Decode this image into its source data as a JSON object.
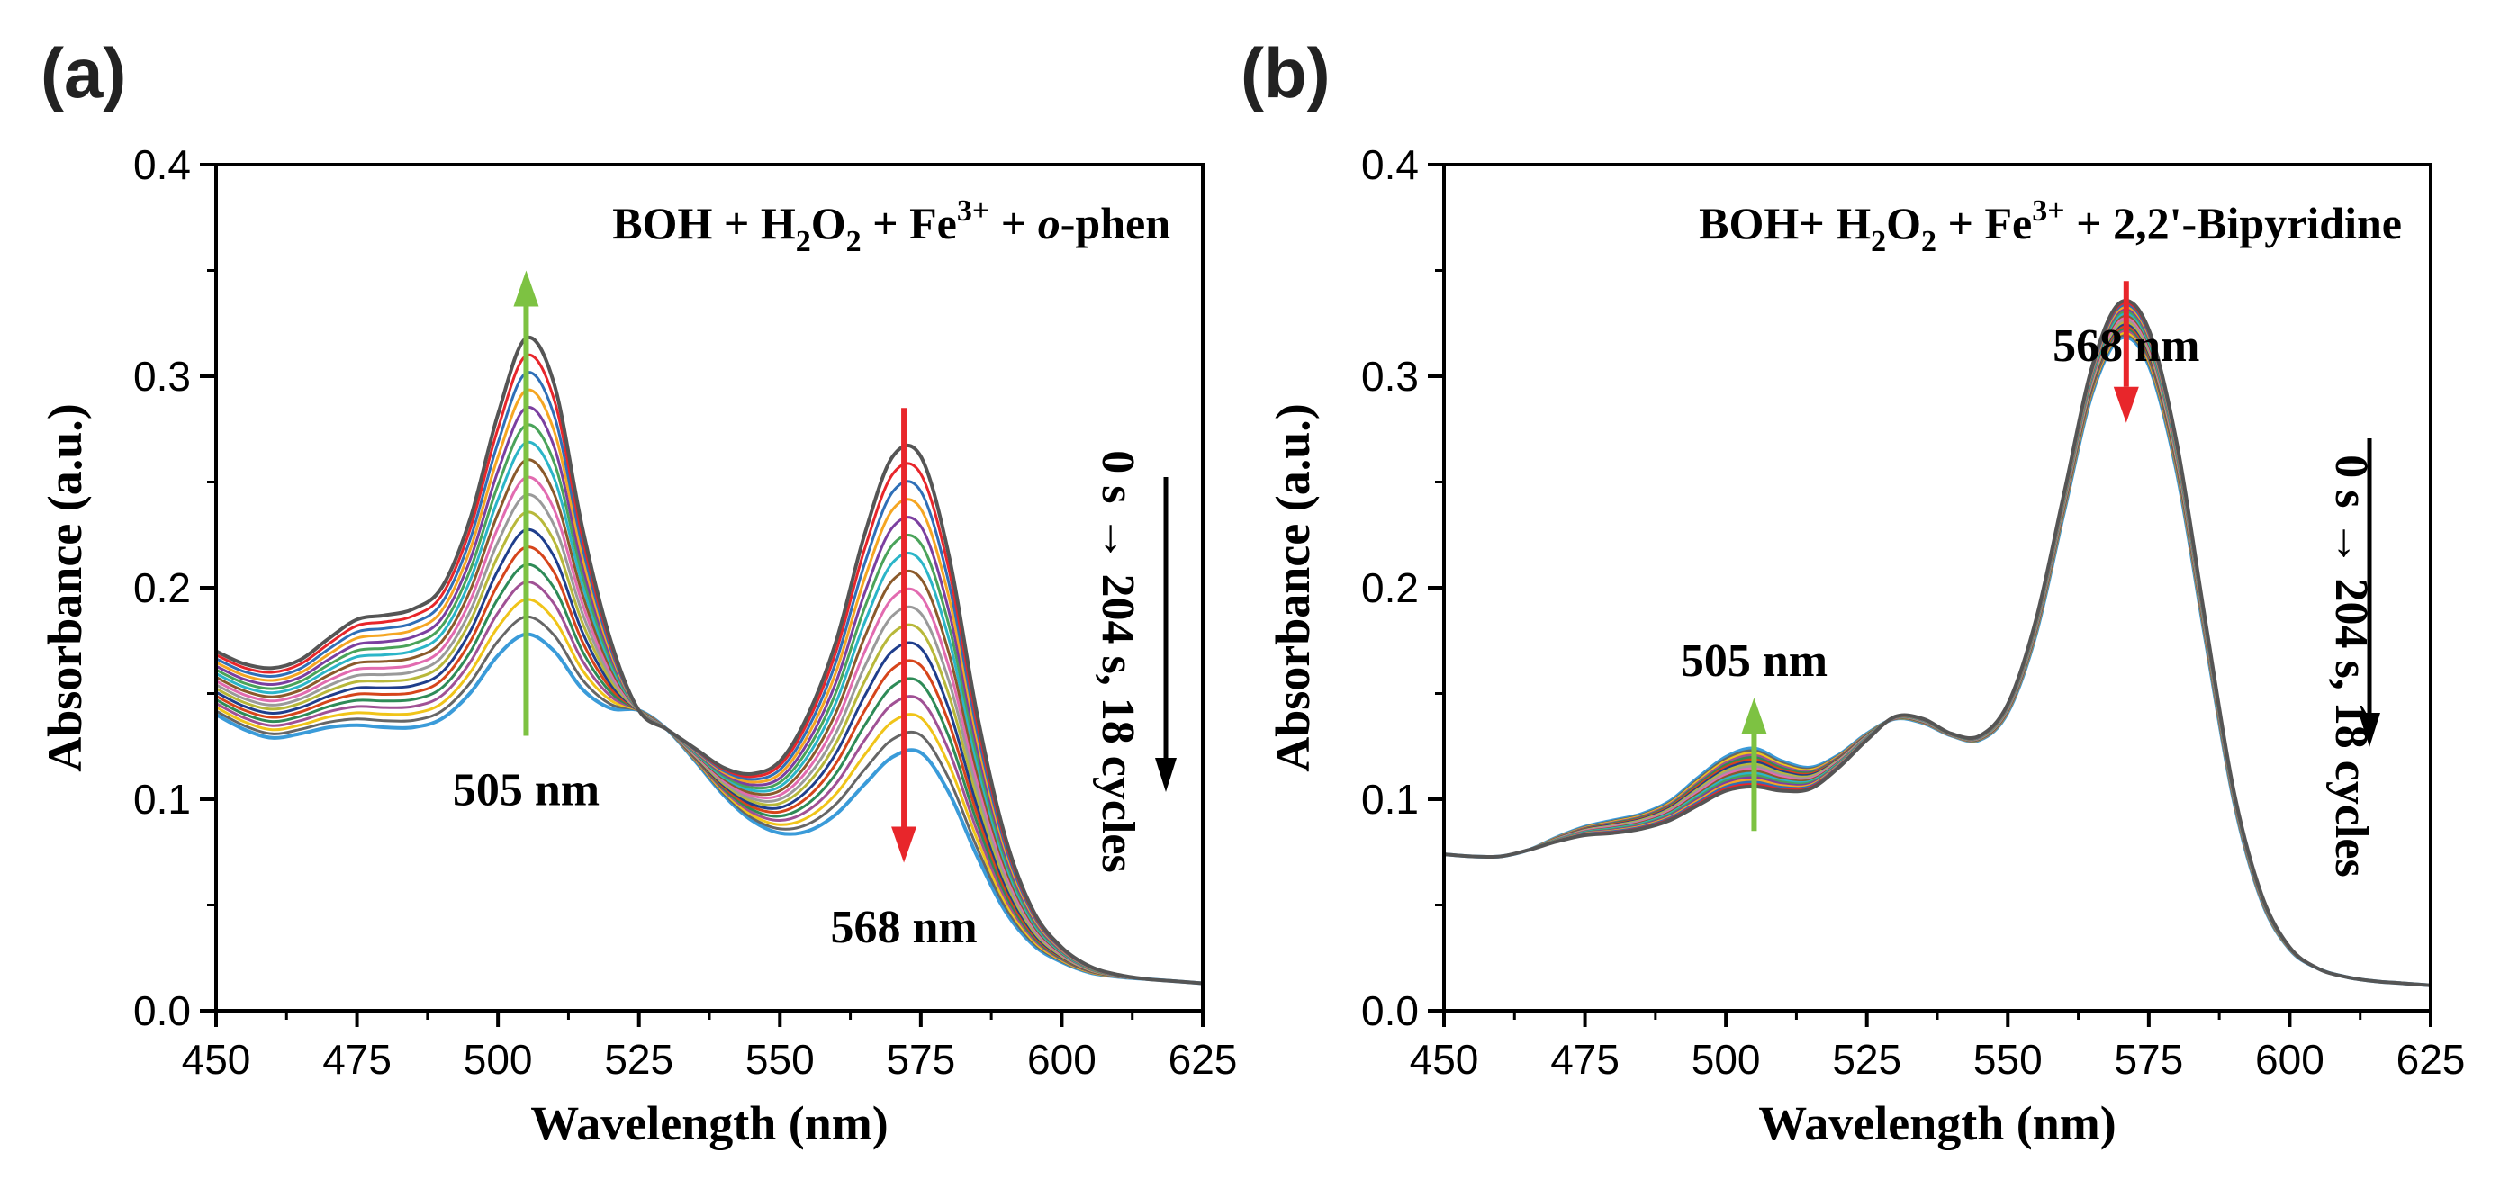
{
  "chart_data": [
    {
      "type": "line",
      "panel_label": "(a)",
      "title": "",
      "annotation_parts": [
        "BOH + H",
        "2",
        "O",
        "2",
        " + Fe",
        "3+",
        " + ",
        "o",
        "-phen"
      ],
      "xlabel": "Wavelength (nm)",
      "ylabel": "Absorbance (a.u.)",
      "xlim": [
        450,
        625
      ],
      "ylim": [
        0.0,
        0.4
      ],
      "xticks": [
        450,
        475,
        500,
        525,
        550,
        575,
        600,
        625
      ],
      "yticks": [
        0.0,
        0.1,
        0.2,
        0.3,
        0.4
      ],
      "ytick_labels": [
        "0.0",
        "0.1",
        "0.2",
        "0.3",
        "0.4"
      ],
      "grid": false,
      "legend": "none",
      "cycles_text": "0 s → 204 s, 18 cycles",
      "peak_labels": [
        {
          "text": "505 nm",
          "x": 505,
          "arrow": "up",
          "arrow_from": 0.13,
          "arrow_to": 0.35,
          "color": "#7dc242",
          "label_y": 0.105
        },
        {
          "text": "568 nm",
          "x": 572,
          "arrow": "down",
          "arrow_from": 0.285,
          "arrow_to": 0.07,
          "color": "#e8262b",
          "label_y": 0.04
        }
      ],
      "n_curves": 18,
      "x": [
        450,
        455,
        460,
        465,
        470,
        475,
        480,
        485,
        490,
        495,
        500,
        505,
        510,
        515,
        520,
        525,
        530,
        535,
        540,
        545,
        550,
        555,
        560,
        565,
        570,
        575,
        580,
        585,
        590,
        595,
        600,
        605,
        610,
        615,
        620,
        625
      ],
      "series": [
        {
          "name": "",
          "values": [
            0.17,
            0.164,
            0.162,
            0.166,
            0.176,
            0.185,
            0.187,
            0.19,
            0.2,
            0.232,
            0.282,
            0.318,
            0.296,
            0.228,
            0.175,
            0.142,
            0.133,
            0.124,
            0.115,
            0.112,
            0.118,
            0.14,
            0.175,
            0.225,
            0.262,
            0.262,
            0.215,
            0.14,
            0.082,
            0.047,
            0.03,
            0.021,
            0.017,
            0.015,
            0.014,
            0.013
          ]
        },
        {
          "name": "",
          "values": [
            0.14,
            0.133,
            0.129,
            0.131,
            0.134,
            0.135,
            0.134,
            0.134,
            0.138,
            0.15,
            0.168,
            0.178,
            0.17,
            0.152,
            0.143,
            0.142,
            0.133,
            0.118,
            0.102,
            0.09,
            0.084,
            0.085,
            0.093,
            0.107,
            0.12,
            0.122,
            0.103,
            0.073,
            0.047,
            0.031,
            0.023,
            0.018,
            0.016,
            0.015,
            0.014,
            0.013
          ]
        }
      ]
    },
    {
      "type": "line",
      "panel_label": "(b)",
      "title": "",
      "annotation_parts": [
        "BOH+ H",
        "2",
        "O",
        "2",
        " + Fe",
        "3+",
        " + 2,2'-Bipyridine"
      ],
      "xlabel": "Wavelength (nm)",
      "ylabel": "Absorbance (a.u.)",
      "xlim": [
        450,
        625
      ],
      "ylim": [
        0.0,
        0.4
      ],
      "xticks": [
        450,
        475,
        500,
        525,
        550,
        575,
        600,
        625
      ],
      "yticks": [
        0.0,
        0.1,
        0.2,
        0.3,
        0.4
      ],
      "ytick_labels": [
        "0.0",
        "0.1",
        "0.2",
        "0.3",
        "0.4"
      ],
      "grid": false,
      "legend": "none",
      "cycles_text": "0 s → 204 s, 18 cycles",
      "peak_labels": [
        {
          "text": "568 nm",
          "x": 571,
          "arrow": "down",
          "arrow_from": 0.345,
          "arrow_to": 0.278,
          "color": "#e8262b",
          "label_y": 0.315
        },
        {
          "text": "505 nm",
          "x": 505,
          "arrow": "up",
          "arrow_from": 0.085,
          "arrow_to": 0.148,
          "color": "#7dc242",
          "label_y": 0.166
        }
      ],
      "n_curves": 18,
      "x": [
        450,
        455,
        460,
        465,
        470,
        475,
        480,
        485,
        490,
        495,
        500,
        505,
        510,
        515,
        520,
        525,
        530,
        535,
        540,
        545,
        550,
        555,
        560,
        565,
        570,
        575,
        580,
        585,
        590,
        595,
        600,
        605,
        610,
        615,
        620,
        625
      ],
      "series": [
        {
          "name": "",
          "values": [
            0.074,
            0.073,
            0.073,
            0.076,
            0.08,
            0.083,
            0.084,
            0.086,
            0.09,
            0.097,
            0.104,
            0.106,
            0.104,
            0.105,
            0.115,
            0.128,
            0.139,
            0.138,
            0.131,
            0.13,
            0.145,
            0.185,
            0.245,
            0.305,
            0.335,
            0.322,
            0.268,
            0.185,
            0.105,
            0.055,
            0.03,
            0.02,
            0.016,
            0.014,
            0.013,
            0.012
          ]
        },
        {
          "name": "",
          "values": [
            0.074,
            0.073,
            0.073,
            0.076,
            0.082,
            0.087,
            0.09,
            0.093,
            0.099,
            0.11,
            0.12,
            0.124,
            0.118,
            0.115,
            0.121,
            0.131,
            0.138,
            0.136,
            0.13,
            0.128,
            0.141,
            0.178,
            0.236,
            0.292,
            0.318,
            0.305,
            0.254,
            0.176,
            0.1,
            0.052,
            0.029,
            0.02,
            0.016,
            0.014,
            0.013,
            0.012
          ]
        }
      ]
    }
  ]
}
